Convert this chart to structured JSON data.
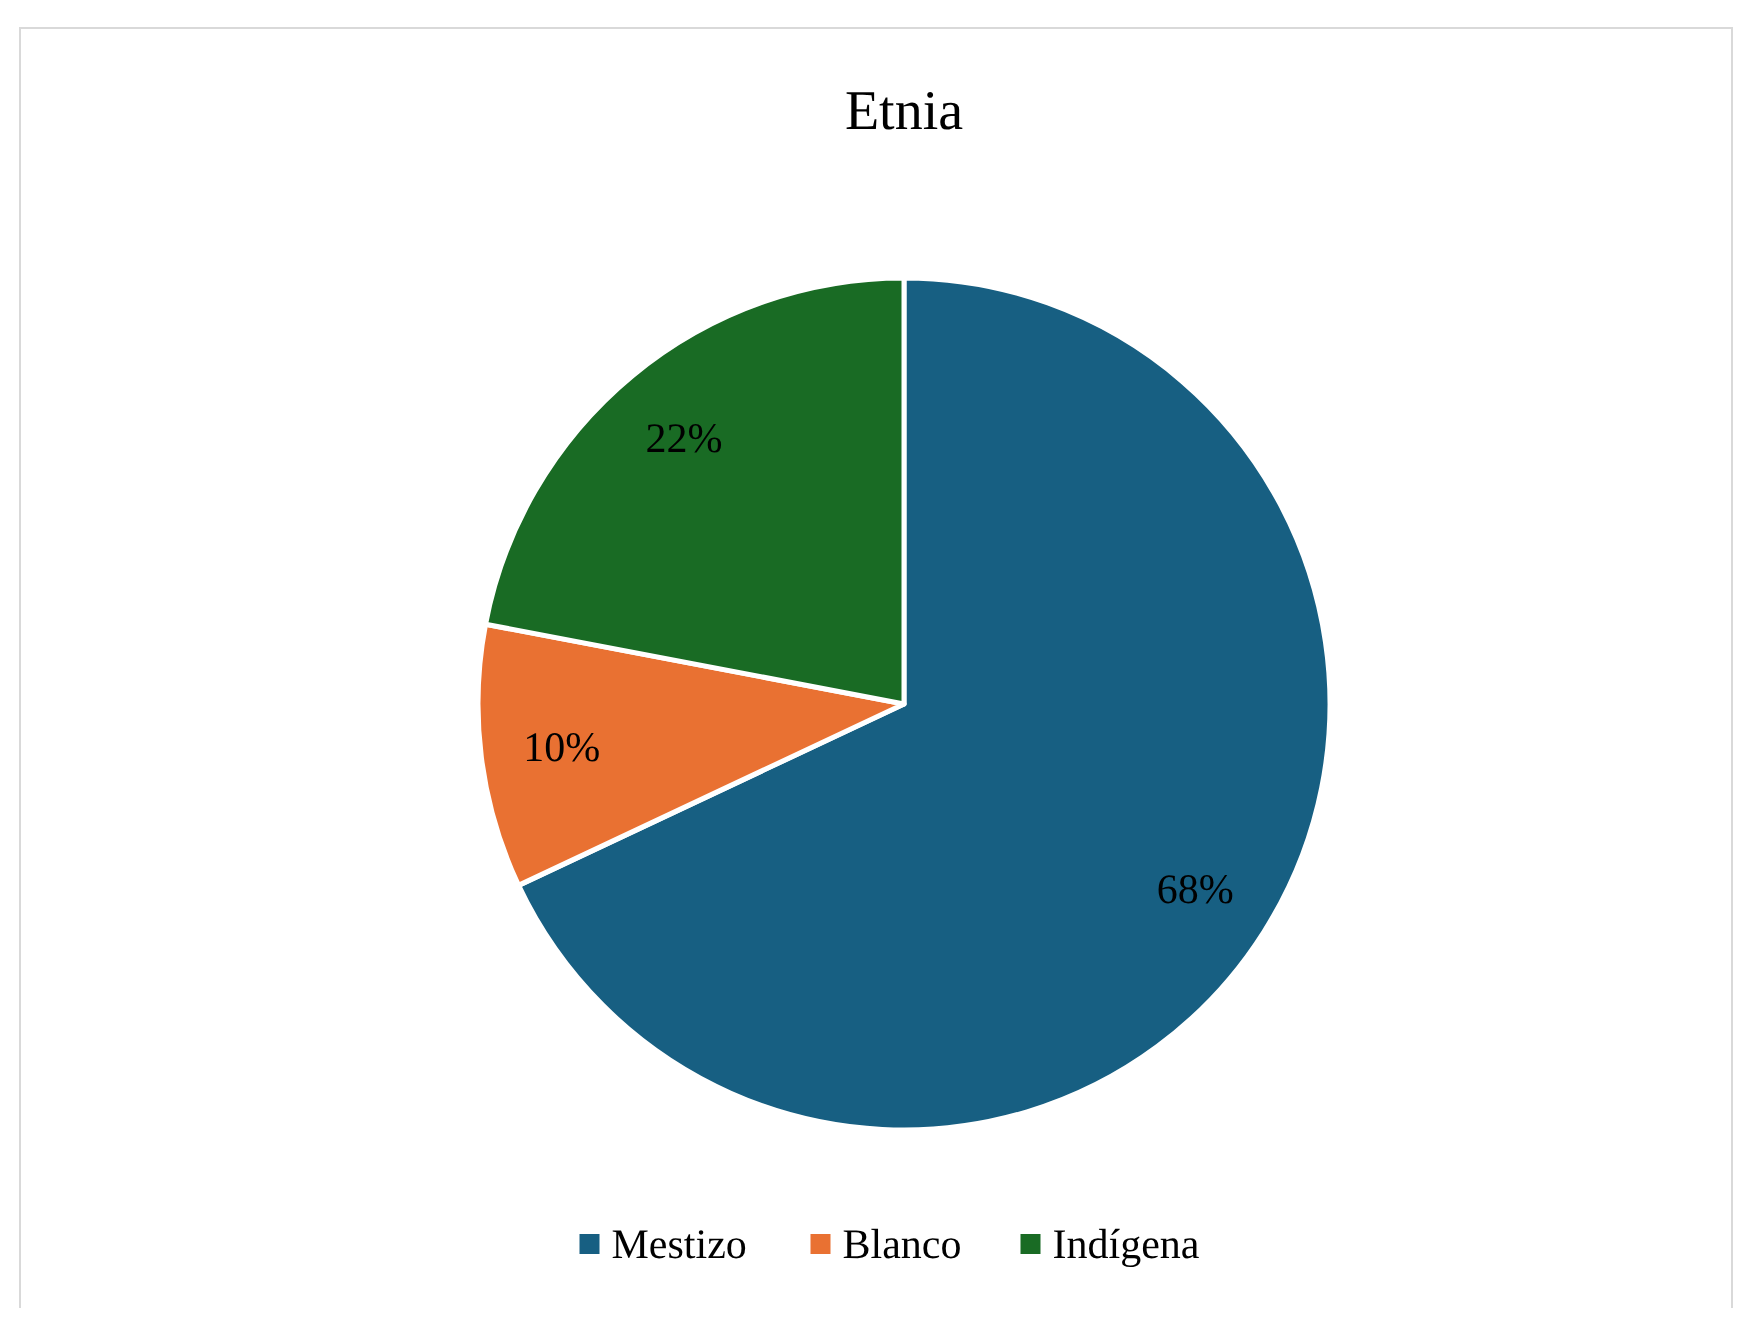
{
  "chart_data": {
    "type": "pie",
    "title": "Etnia",
    "categories": [
      "Mestizo",
      "Blanco",
      "Indígena"
    ],
    "values": [
      68,
      10,
      22
    ],
    "colors": [
      "#175f82",
      "#e97132",
      "#196b24"
    ],
    "value_labels": [
      "68%",
      "10%",
      "22%"
    ],
    "legend": "bottom"
  }
}
